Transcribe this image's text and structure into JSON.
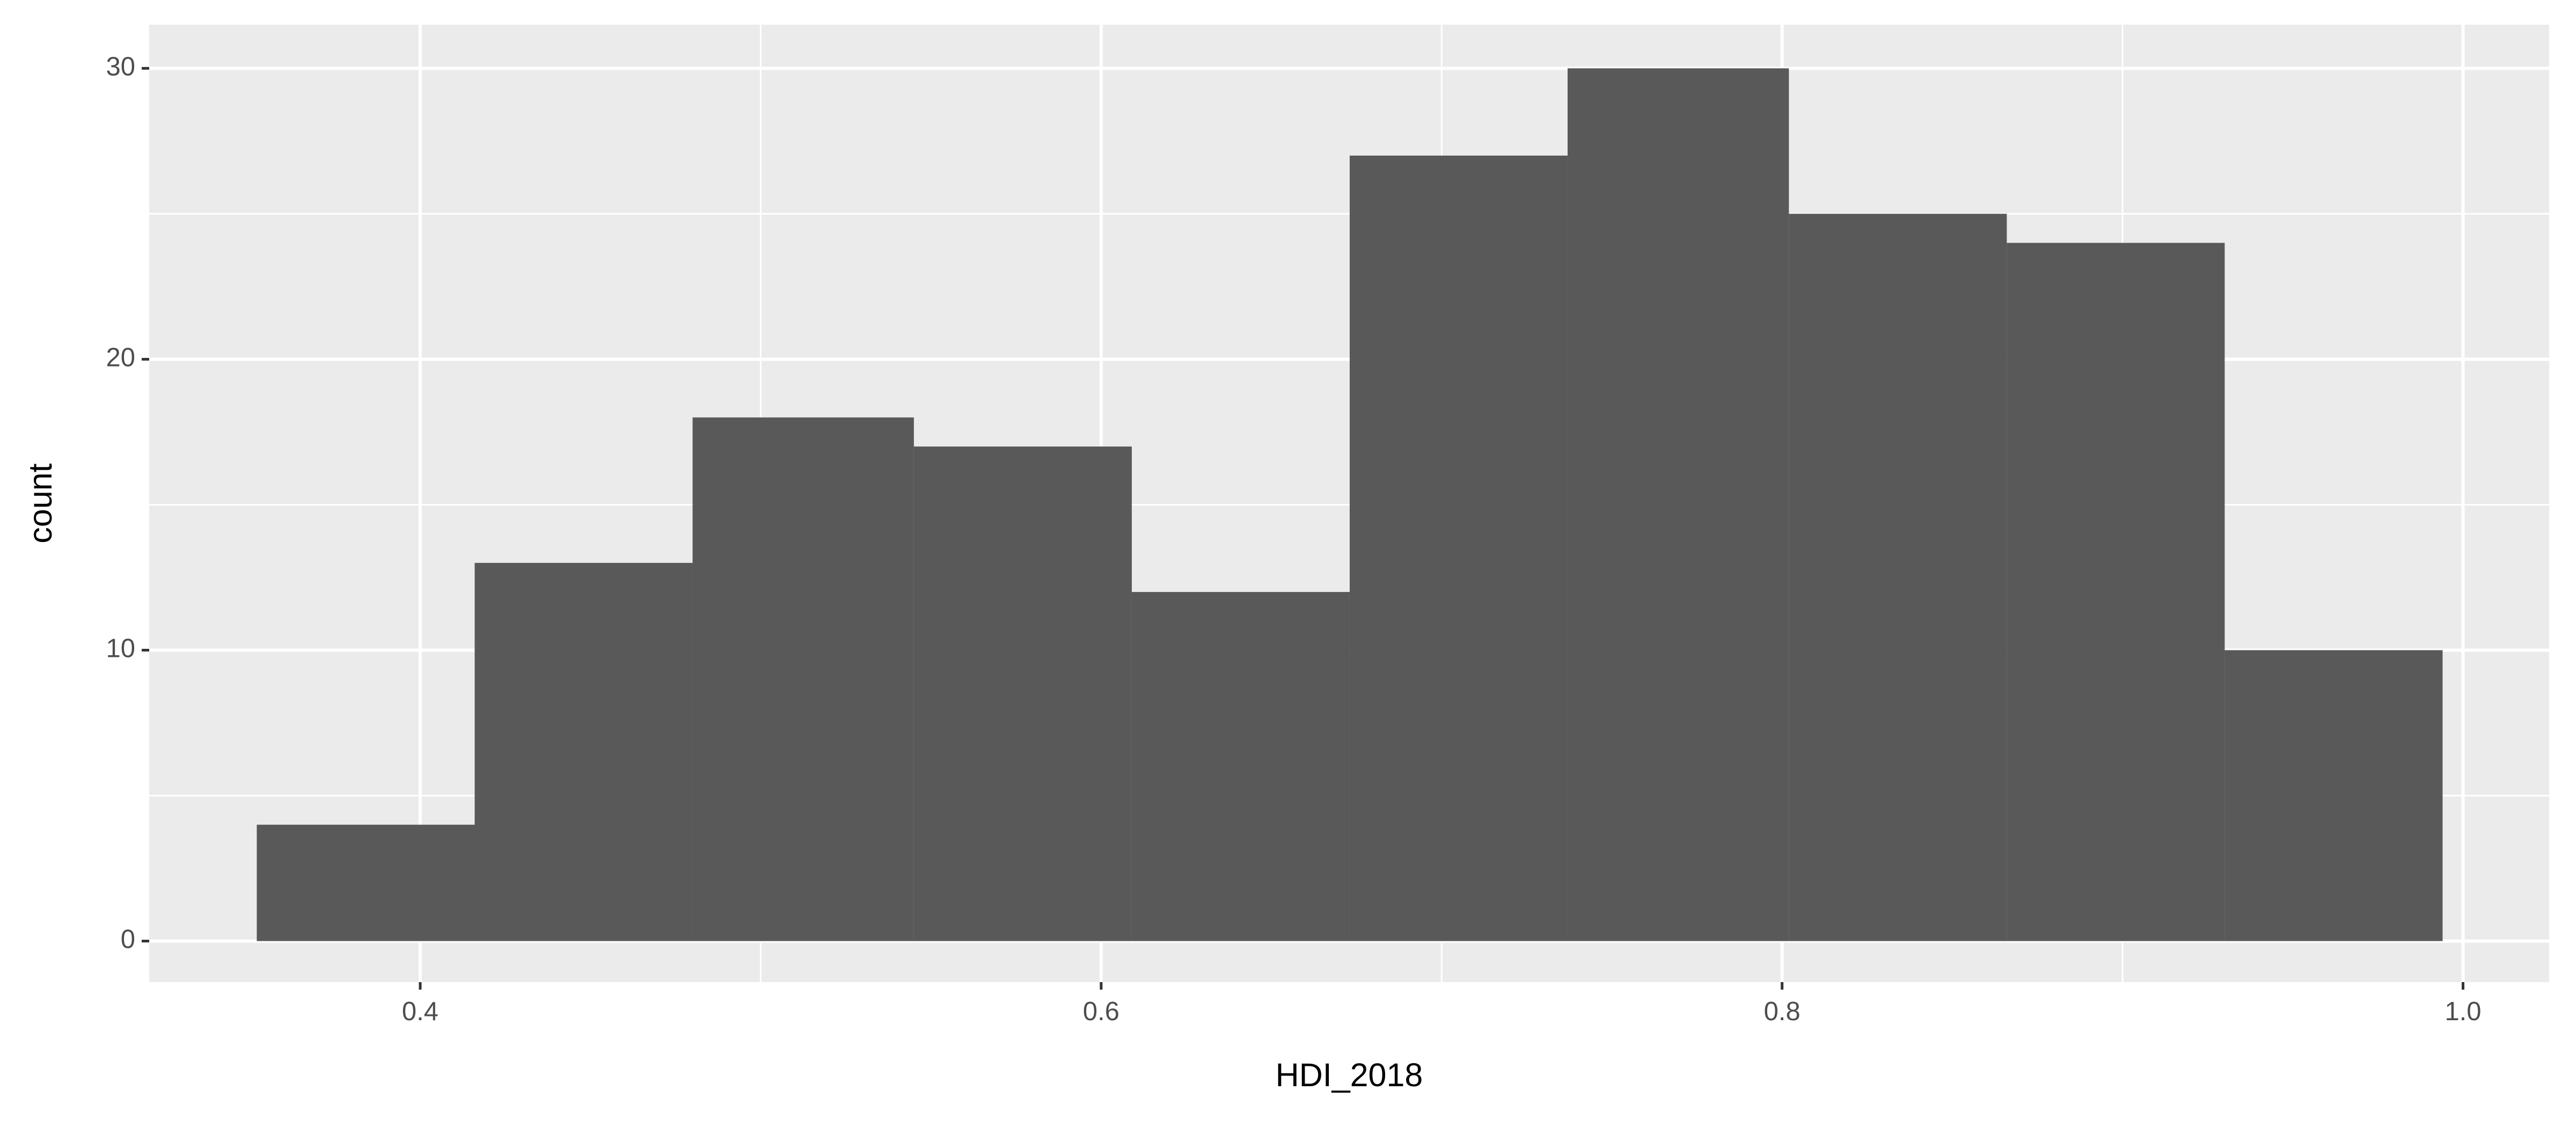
{
  "chart_data": {
    "type": "histogram",
    "x_label": "HDI_2018",
    "y_label": "count",
    "bins": [
      0.352,
      0.416,
      0.48,
      0.545,
      0.609,
      0.673,
      0.737,
      0.802,
      0.866,
      0.93,
      0.994
    ],
    "counts": [
      4,
      13,
      18,
      17,
      12,
      27,
      30,
      25,
      24,
      10
    ],
    "color": "#595959",
    "xlim": [
      0.3204,
      1.0253
    ],
    "ylim": [
      -1.41,
      31.5
    ],
    "xticks": [
      0.4,
      0.6,
      0.8,
      {
        "value": 1.0,
        "label": "1.0"
      }
    ],
    "yticks": [
      0,
      10,
      20,
      30
    ],
    "x_minor_breaks": [
      0.5,
      0.7,
      0.9
    ],
    "y_minor_breaks": [
      5,
      15,
      25
    ],
    "grid": true
  }
}
